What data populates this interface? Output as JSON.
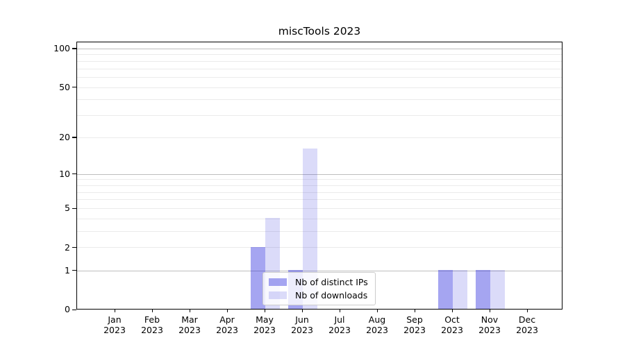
{
  "chart_data": {
    "type": "bar",
    "title": "miscTools 2023",
    "x_categories": [
      {
        "month": "Jan",
        "year": "2023"
      },
      {
        "month": "Feb",
        "year": "2023"
      },
      {
        "month": "Mar",
        "year": "2023"
      },
      {
        "month": "Apr",
        "year": "2023"
      },
      {
        "month": "May",
        "year": "2023"
      },
      {
        "month": "Jun",
        "year": "2023"
      },
      {
        "month": "Jul",
        "year": "2023"
      },
      {
        "month": "Aug",
        "year": "2023"
      },
      {
        "month": "Sep",
        "year": "2023"
      },
      {
        "month": "Oct",
        "year": "2023"
      },
      {
        "month": "Nov",
        "year": "2023"
      },
      {
        "month": "Dec",
        "year": "2023"
      }
    ],
    "series": [
      {
        "name": "Nb of distinct IPs",
        "color": "#1E1EDC66",
        "values": [
          0,
          0,
          0,
          0,
          2,
          1,
          0,
          0,
          0,
          1,
          1,
          0
        ]
      },
      {
        "name": "Nb of downloads",
        "color": "#1E1EDC29",
        "values": [
          0,
          0,
          0,
          0,
          4,
          16,
          0,
          0,
          0,
          1,
          1,
          0
        ]
      }
    ],
    "y_axis": {
      "scale": "log1p",
      "tick_labels": [
        "0",
        "1",
        "2",
        "5",
        "10",
        "20",
        "50",
        "100"
      ],
      "tick_values": [
        0,
        1,
        2,
        5,
        10,
        20,
        50,
        100
      ],
      "major_grid_values": [
        1,
        10,
        100
      ],
      "minor_grid_values": [
        2,
        3,
        4,
        5,
        6,
        7,
        8,
        9,
        20,
        30,
        40,
        50,
        60,
        70,
        80,
        90
      ],
      "top_value": 113,
      "ylim": [
        0,
        113
      ]
    },
    "legend": {
      "position": "lower center",
      "items": [
        "Nb of distinct IPs",
        "Nb of downloads"
      ]
    },
    "grid": true
  },
  "colors": {
    "bar_distinct_ips": "#1E1EDC66",
    "bar_downloads": "#1E1EDC29",
    "major_grid": "#bdbdbd",
    "minor_grid": "#ebebeb",
    "axis_spine": "#000000",
    "text": "#000000",
    "legend_background": "#FFFFFFCC",
    "legend_border": "#cccccc"
  }
}
